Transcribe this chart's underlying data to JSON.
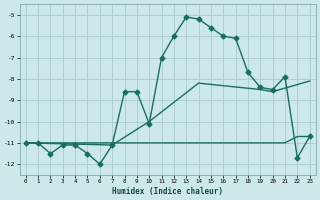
{
  "xlabel": "Humidex (Indice chaleur)",
  "ylabel": "",
  "bg_color": "#cce8e8",
  "grid_color": "#afd0d0",
  "line_color": "#1a6e5e",
  "xlim": [
    -0.5,
    23.5
  ],
  "ylim": [
    -12.5,
    -4.5
  ],
  "yticks": [
    -12,
    -11,
    -10,
    -9,
    -8,
    -7,
    -6,
    -5
  ],
  "xticks": [
    0,
    1,
    2,
    3,
    4,
    5,
    6,
    7,
    8,
    9,
    10,
    11,
    12,
    13,
    14,
    15,
    16,
    17,
    18,
    19,
    20,
    21,
    22,
    23
  ],
  "line1_x": [
    0,
    1,
    2,
    3,
    4,
    5,
    6,
    7,
    8,
    9,
    10,
    11,
    12,
    13,
    14,
    15,
    16,
    17,
    18,
    19,
    20,
    21,
    22,
    23
  ],
  "line1_y": [
    -11.0,
    -11.0,
    -11.5,
    -11.1,
    -11.1,
    -11.5,
    -12.0,
    -11.1,
    -8.6,
    -8.6,
    -10.1,
    -7.0,
    -6.0,
    -5.1,
    -5.2,
    -5.6,
    -6.0,
    -6.1,
    -7.7,
    -8.4,
    -8.5,
    -7.9,
    -11.7,
    -10.7
  ],
  "line2_x": [
    0,
    7,
    10,
    14,
    19,
    20,
    23
  ],
  "line2_y": [
    -11.0,
    -11.1,
    -10.0,
    -8.2,
    -8.5,
    -8.6,
    -8.1
  ],
  "line3_x": [
    0,
    10,
    17,
    20,
    21,
    22,
    23
  ],
  "line3_y": [
    -11.0,
    -11.0,
    -11.0,
    -11.0,
    -11.0,
    -10.7,
    -10.7
  ],
  "marker": "D",
  "markersize": 2.5,
  "linewidth": 1.0
}
